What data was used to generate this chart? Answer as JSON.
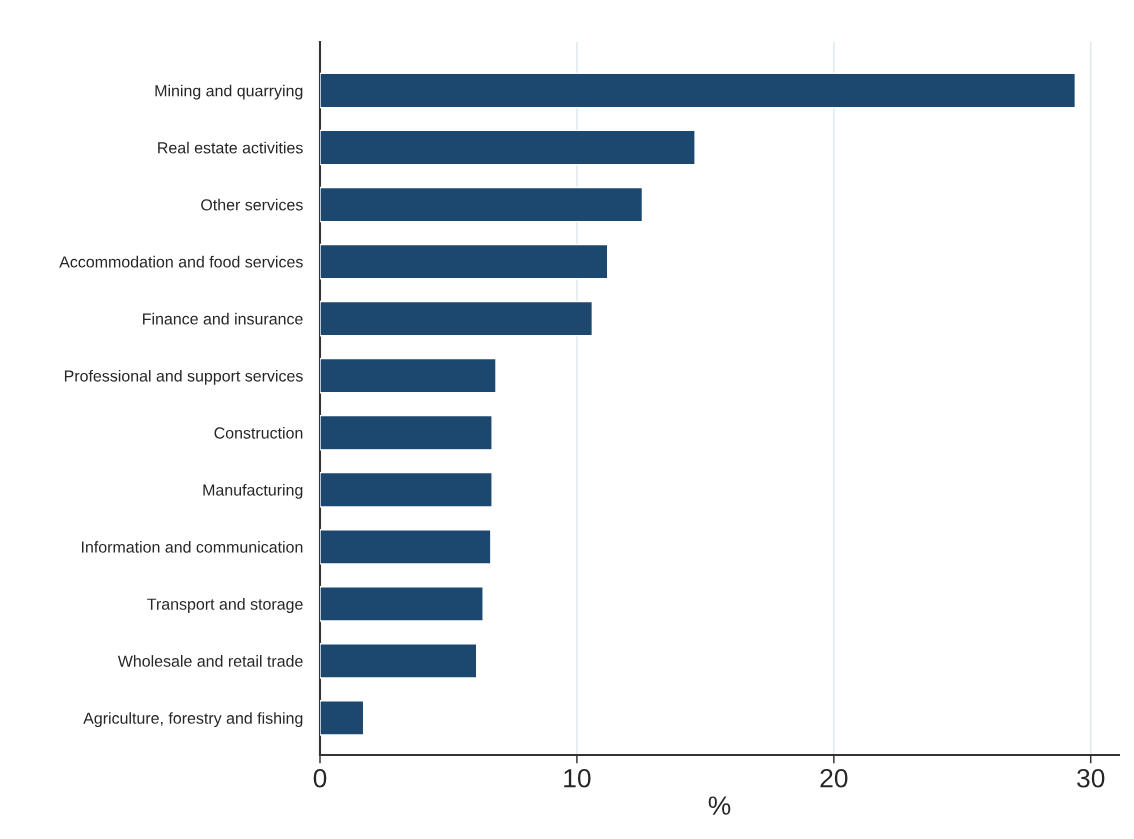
{
  "chart_data": {
    "type": "bar",
    "orientation": "horizontal",
    "xlabel": "%",
    "categories": [
      "Mining and quarrying",
      "Real estate activities",
      "Other services",
      "Accommodation and food services",
      "Finance and insurance",
      "Professional and support services",
      "Construction",
      "Manufacturing",
      "Information and communication",
      "Transport and storage",
      "Wholesale and retail trade",
      "Agriculture, forestry and fishing"
    ],
    "values": [
      29.4,
      14.6,
      12.55,
      11.2,
      10.6,
      6.85,
      6.7,
      6.7,
      6.65,
      6.35,
      6.1,
      1.7
    ],
    "color": "#1c4870",
    "xlim": [
      0,
      31.1
    ],
    "xticks": [
      0,
      10,
      20,
      30
    ],
    "grid": "x",
    "legend": false
  }
}
